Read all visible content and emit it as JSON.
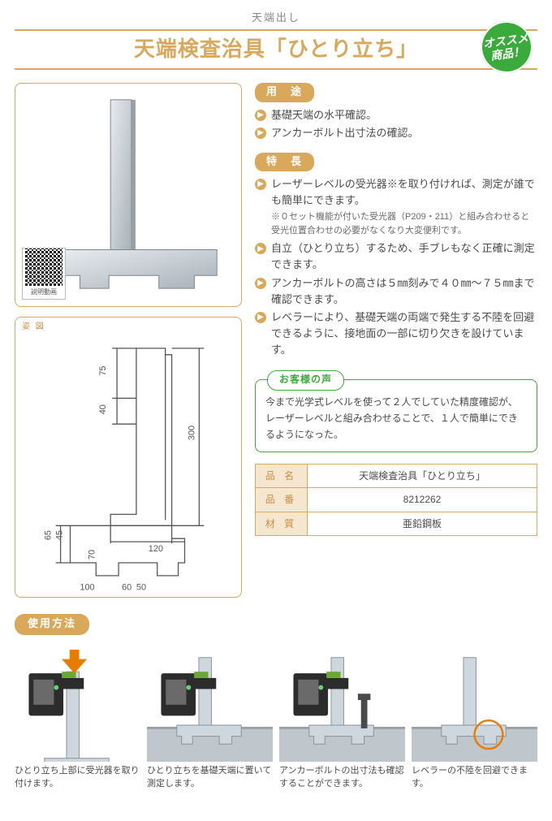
{
  "header": {
    "category": "天端出し",
    "title": "天端検査治具「ひとり立ち」",
    "badge_line1": "オススメ",
    "badge_line2": "商品！"
  },
  "photo": {
    "qr_label": "説明動画",
    "jig_fill": "#cfd6dc",
    "jig_stroke": "#8a9096"
  },
  "diagram": {
    "label": "姿 図",
    "stroke": "#555555",
    "dims": {
      "h_total": "300",
      "top_seg": "75",
      "mid_seg": "40",
      "base_w": "120",
      "side_in": "70",
      "side_out": "65",
      "g_a": "65",
      "g_b": "45",
      "foot_w": "100",
      "bot_a": "60",
      "bot_b": "50"
    }
  },
  "sections": {
    "usage_label": "用　途",
    "feature_label": "特　長",
    "voice_label": "お客様の声",
    "howto_label": "使用方法"
  },
  "usage_items": [
    "基礎天端の水平確認。",
    "アンカーボルト出寸法の確認。"
  ],
  "feature_items": [
    {
      "text": "レーザーレベルの受光器※を取り付ければ、測定が誰でも簡単にできます。",
      "sub": "※０セット機能が付いた受光器（P209・211）と組み合わせると受光位置合わせの必要がなくなり大変便利です。"
    },
    {
      "text": "自立（ひとり立ち）するため、手ブレもなく正確に測定できます。"
    },
    {
      "text": "アンカーボルトの高さは５㎜刻みで４０㎜〜７５㎜まで確認できます。"
    },
    {
      "text": "レベラーにより、基礎天端の両端で発生する不陸を回避できるように、接地面の一部に切り欠きを設けています。"
    }
  ],
  "voice_text": "今まで光学式レベルを使って２人でしていた精度確認が、レーザーレベルと組み合わせることで、１人で簡単にできるようになった。",
  "spec": {
    "rows": [
      {
        "h": "品 名",
        "v": "天端検査治具「ひとり立ち」"
      },
      {
        "h": "品 番",
        "v": "8212262"
      },
      {
        "h": "材 質",
        "v": "亜鉛鋼板"
      }
    ]
  },
  "howto": [
    {
      "cap": "ひとり立ち上部に受光器を取り付けます。",
      "arrow": true
    },
    {
      "cap": "ひとり立ちを基礎天端に置いて測定します。"
    },
    {
      "cap": "アンカーボルトの出寸法も確認することができます。"
    },
    {
      "cap": "レベラーの不陸を回避できます。",
      "circle": true
    }
  ],
  "colors": {
    "accent": "#d9a85a",
    "green": "#3aaa3a",
    "metal_light": "#cfd7de",
    "metal_dark": "#8a9299",
    "concrete": "#bfc6cc",
    "device_body": "#2c2c2c",
    "device_face": "#6a6a6a",
    "arrow": "#e77c00",
    "circle": "#e77c00"
  }
}
